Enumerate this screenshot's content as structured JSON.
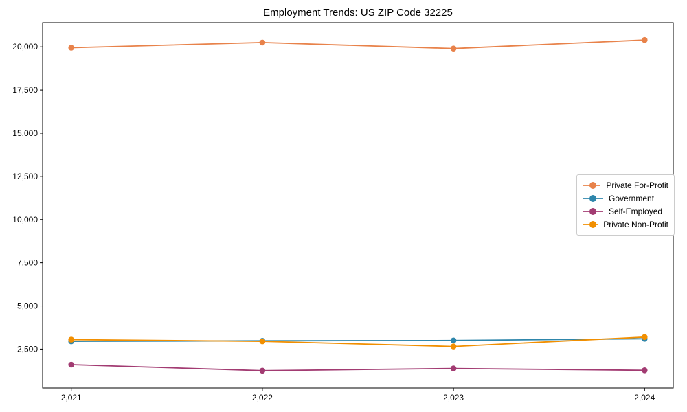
{
  "chart_data": {
    "type": "line",
    "title": "Employment Trends: US ZIP Code 32225",
    "xlabel": "",
    "ylabel": "",
    "categories": [
      2021,
      2022,
      2023,
      2024
    ],
    "series": [
      {
        "name": "Private For-Profit",
        "slug": "private-for-profit",
        "color": "#E8824A",
        "values": [
          19950,
          20250,
          19900,
          20400
        ]
      },
      {
        "name": "Government",
        "slug": "government",
        "color": "#2E86AB",
        "values": [
          2950,
          2980,
          3000,
          3100
        ]
      },
      {
        "name": "Self-Employed",
        "slug": "self-employed",
        "color": "#A23B72",
        "values": [
          1600,
          1250,
          1380,
          1270
        ]
      },
      {
        "name": "Private Non-Profit",
        "slug": "private-non-profit",
        "color": "#F18F01",
        "values": [
          3050,
          2950,
          2650,
          3200
        ]
      }
    ],
    "xticks": [
      2021,
      2022,
      2023,
      2024
    ],
    "yticks": [
      2500,
      5000,
      7500,
      10000,
      12500,
      15000,
      17500,
      20000
    ],
    "xlim": [
      2020.85,
      2024.15
    ],
    "ylim": [
      250,
      21400
    ],
    "grid": false,
    "legend_position": "center-right",
    "axis_color": "#000000",
    "background_color": "#ffffff"
  }
}
